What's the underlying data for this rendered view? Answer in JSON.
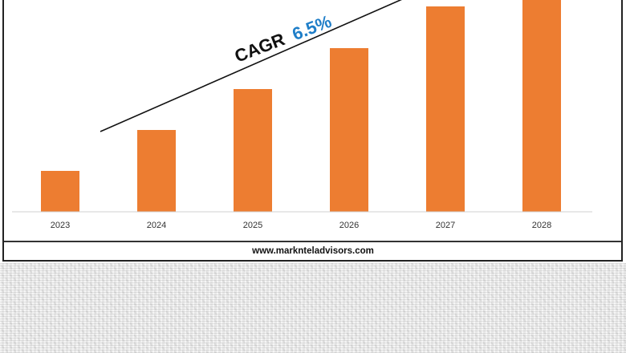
{
  "chart_data": {
    "type": "bar",
    "categories": [
      "2023",
      "2024",
      "2025",
      "2026",
      "2027",
      "2028"
    ],
    "values": [
      51,
      102,
      153,
      204,
      256,
      270
    ],
    "ylim": [
      0,
      260
    ],
    "bar_color": "#ED7D31",
    "grid": false,
    "annotation": {
      "prefix": "CAGR",
      "value": "6.5%",
      "prefix_color": "#111111",
      "value_color": "#1F7EC8"
    }
  },
  "footer": {
    "website": "www.marknteladvisors.com"
  }
}
